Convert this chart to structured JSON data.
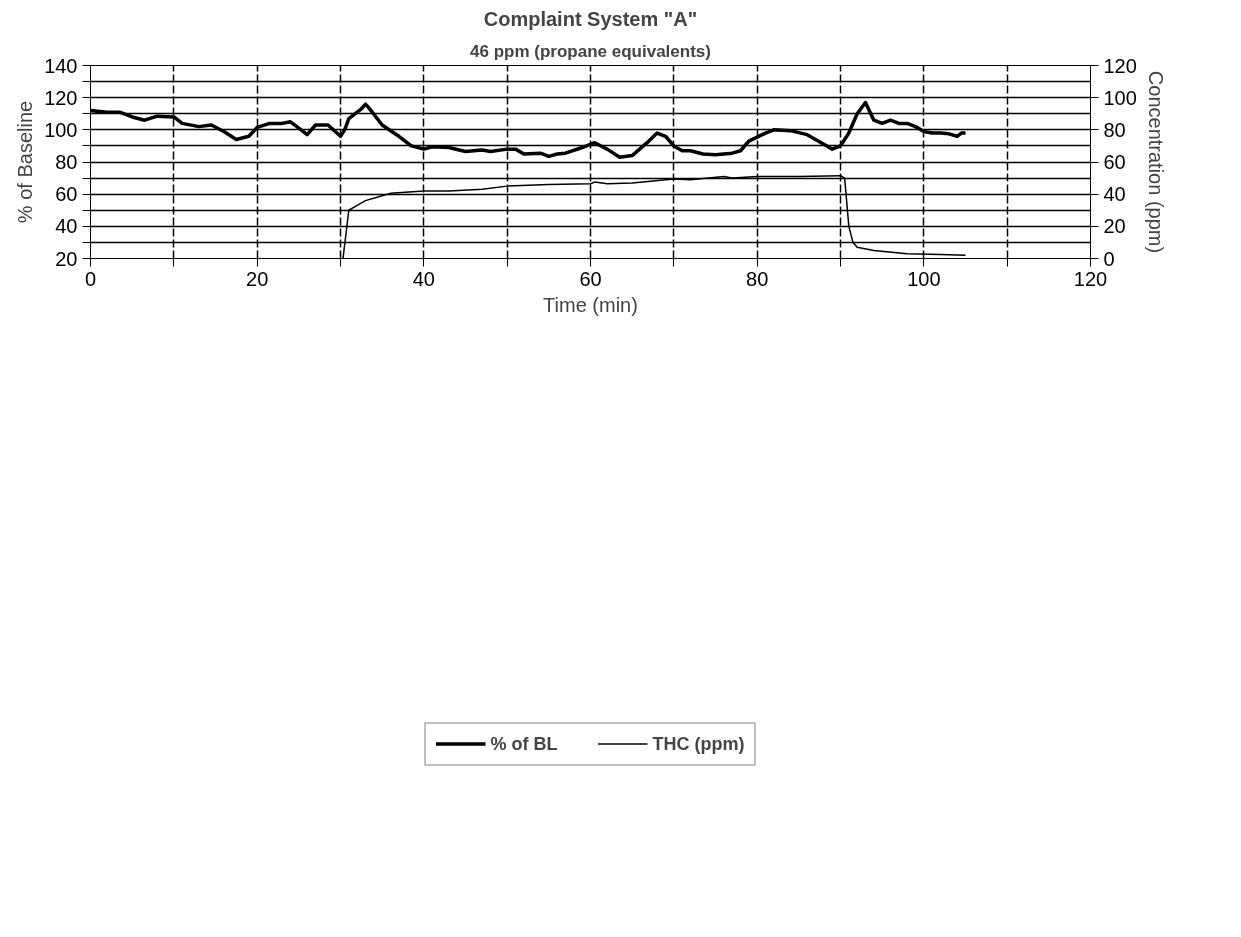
{
  "chart_data": {
    "type": "line",
    "title": "Complaint System \"A\"",
    "subtitle": "46 ppm (propane equivalents)",
    "xlabel": "Time (min)",
    "ylabel": "% of Baseline",
    "y2label": "Concentration (ppm)",
    "xlim": [
      0,
      120
    ],
    "xticks": [
      0,
      {
        "value": 10,
        "label": null
      },
      20,
      {
        "value": 30,
        "label": null
      },
      40,
      {
        "value": 50,
        "label": null
      },
      60,
      {
        "value": 70,
        "label": null
      },
      80,
      {
        "value": 90,
        "label": null
      },
      100,
      {
        "value": 110,
        "label": null
      },
      120
    ],
    "ylim": [
      20,
      140
    ],
    "yticks": [
      20,
      {
        "value": 30,
        "label": null
      },
      40,
      {
        "value": 50,
        "label": null
      },
      60,
      {
        "value": 70,
        "label": null
      },
      80,
      {
        "value": 90,
        "label": null
      },
      100,
      {
        "value": 110,
        "label": null
      },
      120,
      {
        "value": 130,
        "label": null
      },
      140
    ],
    "y2lim": [
      0,
      120
    ],
    "y2ticks": [
      0,
      20,
      40,
      60,
      80,
      100,
      120
    ],
    "grid": true,
    "legend": "bottom",
    "marker": "none",
    "series": [
      {
        "name": "% of BL",
        "color": "#000000",
        "x": [
          0,
          2,
          3.5,
          5,
          6.5,
          8,
          10,
          11,
          13,
          14.5,
          16,
          17.5,
          19,
          20,
          21.5,
          23,
          24,
          25,
          26,
          27,
          28.5,
          30,
          30.5,
          31,
          32.5,
          33,
          33.5,
          35,
          37,
          38.5,
          40,
          41,
          43,
          45,
          47,
          48,
          50,
          51,
          52,
          54,
          55,
          56,
          57,
          59,
          60.5,
          62,
          63.5,
          65,
          67,
          68,
          69,
          70,
          71,
          72,
          73.5,
          75,
          77,
          78,
          79,
          81,
          82,
          84,
          86,
          88,
          89,
          90,
          91,
          92,
          93,
          94,
          95,
          96,
          97,
          98,
          99,
          100,
          101,
          102,
          103,
          104,
          104.5,
          105
        ],
        "values": [
          112,
          111,
          111,
          108,
          106,
          108.5,
          108,
          104,
          102,
          103,
          99,
          94,
          96,
          101.5,
          104,
          104,
          105,
          101,
          97,
          103,
          103,
          96,
          100,
          107,
          113,
          116,
          113,
          103,
          96,
          90,
          88,
          89.5,
          89,
          86.5,
          87.5,
          86.5,
          88,
          88,
          85,
          85.5,
          83.5,
          85,
          85.5,
          89,
          92,
          88,
          83,
          84,
          93,
          98,
          96,
          90,
          87,
          87,
          85,
          84.5,
          85.5,
          87,
          93,
          98,
          100,
          99.5,
          97,
          91,
          88,
          90,
          98,
          110,
          117,
          106,
          104,
          106,
          104,
          104,
          102,
          99,
          98,
          98,
          97.5,
          96,
          98,
          98
        ]
      },
      {
        "name": "THC (ppm)",
        "color": "#000000",
        "axis": "y2",
        "x": [
          30.3,
          31,
          32,
          33,
          35,
          36,
          40,
          43,
          47,
          50,
          55,
          60,
          60.5,
          62,
          65,
          70,
          72,
          76,
          77,
          80,
          85,
          90,
          90.5,
          91,
          91.5,
          92,
          94,
          98,
          102,
          105
        ],
        "values": [
          0,
          30,
          33,
          36,
          39,
          40.5,
          42,
          42,
          43,
          45,
          46,
          46.5,
          47.5,
          46.5,
          47,
          49.5,
          49,
          51,
          50,
          51,
          51,
          51.5,
          50,
          20,
          10,
          7,
          5,
          3,
          2.5,
          2
        ]
      }
    ]
  }
}
